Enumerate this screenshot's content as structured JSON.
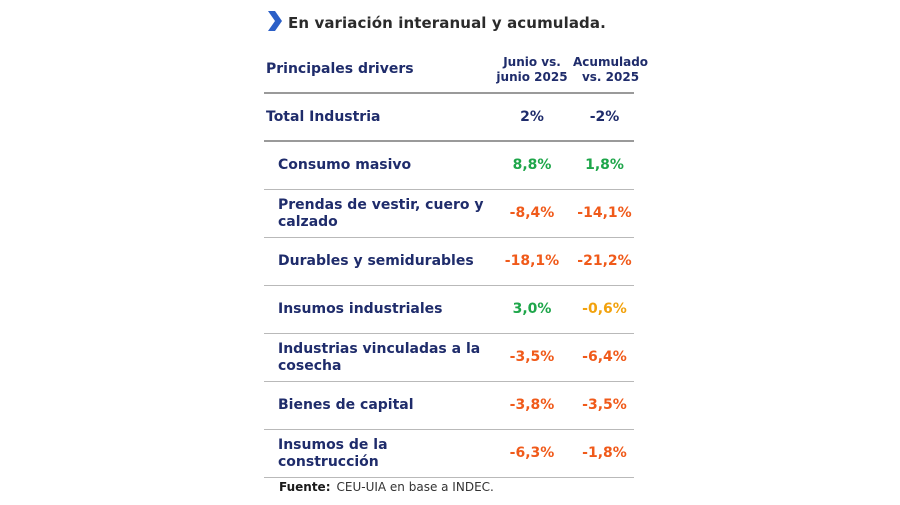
{
  "header": {
    "title": "En variación interanual y acumulada.",
    "marker_color": "#2b5fc7"
  },
  "table": {
    "col_label": "Principales drivers",
    "col1_line1": "Junio vs.",
    "col1_line2": "junio 2025",
    "col2_line1": "Acumulado",
    "col2_line2": "vs. 2025",
    "total": {
      "label": "Total Industria",
      "v1": "2%",
      "v2": "-2%"
    },
    "rows": [
      {
        "label": "Consumo masivo",
        "v1": "8,8%",
        "v2": "1,8%",
        "c1": "pos",
        "c2": "pos"
      },
      {
        "label": "Prendas de vestir, cuero y calzado",
        "v1": "-8,4%",
        "v2": "-14,1%",
        "c1": "neg",
        "c2": "neg"
      },
      {
        "label": "Durables y semidurables",
        "v1": "-18,1%",
        "v2": "-21,2%",
        "c1": "neg",
        "c2": "neg"
      },
      {
        "label": "Insumos industriales",
        "v1": "3,0%",
        "v2": "-0,6%",
        "c1": "pos",
        "c2": "warn"
      },
      {
        "label": "Industrias vinculadas a la cosecha",
        "v1": "-3,5%",
        "v2": "-6,4%",
        "c1": "neg",
        "c2": "neg"
      },
      {
        "label": "Bienes de capital",
        "v1": "-3,8%",
        "v2": "-3,5%",
        "c1": "neg",
        "c2": "neg"
      },
      {
        "label": "Insumos de la construcción",
        "v1": "-6,3%",
        "v2": "-1,8%",
        "c1": "neg",
        "c2": "neg"
      }
    ]
  },
  "colors": {
    "label": "#1f2c6b",
    "positive": "#1ea64a",
    "negative": "#f05a1a",
    "warning": "#f2a20d"
  },
  "footnote": {
    "label": "Fuente:",
    "text": "CEU-UIA en base a INDEC."
  }
}
